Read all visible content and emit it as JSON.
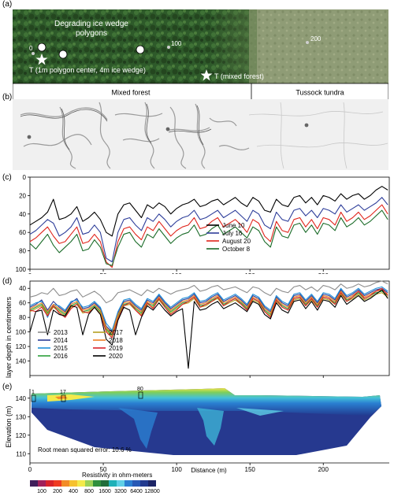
{
  "panels": {
    "a": {
      "letter": "(a)",
      "title": "Degrading ice wedge polygons",
      "marker_0": "0",
      "marker_100": "100",
      "marker_200": "200",
      "site_1": "T (1m polygon center, 4m ice wedge)",
      "site_2": "T (mixed forest)",
      "zone_left": "Mixed forest",
      "zone_right": "Tussock tundra",
      "colors": {
        "forest": "#2f5a2c",
        "tundra": "#8d9a73"
      }
    },
    "b": {
      "letter": "(b)"
    },
    "c": {
      "letter": "(c)",
      "chart_data": {
        "type": "line",
        "x": [
          0,
          4,
          8,
          12,
          16,
          20,
          24,
          28,
          32,
          36,
          40,
          44,
          48,
          52,
          56,
          60,
          64,
          68,
          72,
          76,
          80,
          84,
          88,
          92,
          96,
          100,
          104,
          108,
          112,
          116,
          120,
          124,
          128,
          132,
          136,
          140,
          144,
          148,
          152,
          156,
          160,
          164,
          168,
          172,
          176,
          180,
          184,
          188,
          192,
          196,
          200,
          204,
          208,
          212,
          216,
          220,
          224,
          228,
          232,
          236,
          240,
          244
        ],
        "ylim": [
          100,
          0
        ],
        "xlim": [
          0,
          245
        ],
        "yticks": [
          0,
          20,
          40,
          60,
          80,
          100
        ],
        "series": [
          {
            "name": "June 10",
            "color": "#000000",
            "values": [
              52,
              48,
              44,
              38,
              24,
              46,
              44,
              40,
              32,
              48,
              44,
              38,
              46,
              60,
              64,
              40,
              30,
              28,
              36,
              44,
              30,
              34,
              28,
              32,
              40,
              34,
              30,
              28,
              24,
              32,
              30,
              26,
              24,
              30,
              26,
              22,
              28,
              32,
              22,
              26,
              36,
              38,
              24,
              30,
              32,
              22,
              20,
              28,
              22,
              30,
              20,
              22,
              26,
              18,
              24,
              20,
              18,
              24,
              20,
              14,
              10,
              14
            ]
          },
          {
            "name": "July 16",
            "color": "#2e3e9a",
            "values": [
              62,
              58,
              52,
              46,
              50,
              64,
              60,
              54,
              44,
              62,
              60,
              52,
              60,
              88,
              92,
              60,
              46,
              44,
              52,
              58,
              44,
              48,
              40,
              46,
              54,
              48,
              44,
              42,
              36,
              46,
              44,
              40,
              36,
              44,
              40,
              36,
              42,
              48,
              36,
              40,
              52,
              56,
              38,
              46,
              48,
              36,
              34,
              42,
              36,
              44,
              34,
              36,
              40,
              30,
              38,
              34,
              30,
              36,
              32,
              28,
              22,
              30
            ]
          },
          {
            "name": "August 20",
            "color": "#e0241b",
            "values": [
              70,
              66,
              60,
              54,
              64,
              72,
              70,
              62,
              54,
              72,
              70,
              62,
              70,
              92,
              98,
              70,
              56,
              54,
              62,
              68,
              54,
              58,
              48,
              56,
              64,
              58,
              54,
              52,
              44,
              56,
              54,
              48,
              44,
              54,
              50,
              46,
              52,
              60,
              46,
              50,
              64,
              70,
              48,
              58,
              60,
              46,
              44,
              54,
              46,
              56,
              44,
              46,
              52,
              38,
              48,
              44,
              38,
              46,
              42,
              36,
              30,
              40
            ]
          },
          {
            "name": "October 8",
            "color": "#1a6b28",
            "values": [
              72,
              78,
              70,
              62,
              74,
              82,
              76,
              70,
              62,
              80,
              78,
              68,
              76,
              94,
              96,
              76,
              62,
              60,
              70,
              76,
              62,
              66,
              56,
              64,
              72,
              66,
              62,
              60,
              52,
              64,
              62,
              56,
              52,
              62,
              58,
              54,
              60,
              66,
              54,
              58,
              70,
              76,
              54,
              64,
              66,
              52,
              50,
              60,
              52,
              62,
              50,
              52,
              58,
              44,
              54,
              50,
              44,
              52,
              48,
              42,
              36,
              46
            ]
          }
        ]
      }
    },
    "d": {
      "letter": "(d)",
      "ylabel": "Active layer depth in centimeters",
      "chart_data": {
        "type": "line",
        "x": [
          0,
          4,
          8,
          12,
          16,
          20,
          24,
          28,
          32,
          36,
          40,
          44,
          48,
          52,
          56,
          60,
          64,
          68,
          72,
          76,
          80,
          84,
          88,
          92,
          96,
          100,
          104,
          108,
          112,
          116,
          120,
          124,
          128,
          132,
          136,
          140,
          144,
          148,
          152,
          156,
          160,
          164,
          168,
          172,
          176,
          180,
          184,
          188,
          192,
          196,
          200,
          204,
          208,
          212,
          216,
          220,
          224,
          228,
          232,
          236,
          240,
          244
        ],
        "ylim": [
          160,
          30
        ],
        "xlim": [
          0,
          245
        ],
        "yticks": [
          40,
          60,
          80,
          100,
          120,
          140
        ],
        "series": [
          {
            "name": "2013",
            "color": "#8c8c8c",
            "values": [
              52,
              50,
              46,
              48,
              40,
              50,
              48,
              44,
              42,
              52,
              48,
              44,
              50,
              60,
              56,
              46,
              44,
              42,
              46,
              50,
              42,
              46,
              40,
              44,
              48,
              44,
              42,
              40,
              36,
              44,
              42,
              38,
              36,
              42,
              40,
              38,
              42,
              46,
              38,
              40,
              46,
              50,
              40,
              44,
              46,
              38,
              36,
              42,
              38,
              44,
              36,
              38,
              42,
              34,
              40,
              38,
              34,
              38,
              36,
              32,
              30,
              34
            ]
          },
          {
            "name": "2014",
            "color": "#2b3c96",
            "values": [
              66,
              62,
              56,
              70,
              58,
              66,
              72,
              60,
              54,
              68,
              66,
              60,
              68,
              92,
              100,
              74,
              58,
              56,
              64,
              70,
              56,
              60,
              50,
              60,
              68,
              62,
              56,
              54,
              48,
              60,
              58,
              52,
              48,
              58,
              54,
              50,
              56,
              64,
              50,
              54,
              66,
              72,
              52,
              60,
              64,
              50,
              48,
              58,
              50,
              60,
              48,
              50,
              56,
              42,
              52,
              48,
              42,
              50,
              46,
              42,
              40,
              46
            ]
          },
          {
            "name": "2015",
            "color": "#1f8fd8",
            "values": [
              64,
              60,
              58,
              80,
              62,
              64,
              70,
              58,
              56,
              66,
              64,
              58,
              66,
              88,
              98,
              72,
              56,
              54,
              62,
              68,
              54,
              58,
              48,
              58,
              66,
              60,
              54,
              52,
              46,
              58,
              56,
              50,
              46,
              56,
              52,
              48,
              54,
              62,
              48,
              52,
              64,
              70,
              50,
              58,
              62,
              48,
              46,
              56,
              48,
              58,
              46,
              48,
              54,
              40,
              50,
              46,
              40,
              48,
              44,
              40,
              38,
              44
            ]
          },
          {
            "name": "2016",
            "color": "#2c9e3a",
            "values": [
              70,
              66,
              62,
              74,
              64,
              70,
              76,
              64,
              60,
              72,
              70,
              64,
              72,
              96,
              104,
              78,
              62,
              60,
              68,
              74,
              60,
              64,
              54,
              64,
              72,
              66,
              60,
              58,
              52,
              64,
              62,
              56,
              52,
              62,
              58,
              54,
              60,
              68,
              54,
              58,
              70,
              76,
              56,
              64,
              68,
              54,
              52,
              62,
              54,
              64,
              52,
              54,
              60,
              46,
              56,
              52,
              46,
              54,
              50,
              46,
              44,
              50
            ]
          },
          {
            "name": "2017",
            "color": "#b4a021",
            "values": [
              72,
              68,
              64,
              76,
              66,
              72,
              78,
              66,
              62,
              74,
              72,
              66,
              74,
              98,
              106,
              80,
              64,
              62,
              70,
              76,
              62,
              66,
              56,
              66,
              74,
              68,
              62,
              60,
              54,
              66,
              64,
              58,
              54,
              64,
              60,
              56,
              62,
              70,
              56,
              60,
              72,
              78,
              58,
              66,
              70,
              56,
              54,
              64,
              56,
              66,
              54,
              56,
              62,
              48,
              58,
              54,
              48,
              56,
              52,
              48,
              46,
              52
            ]
          },
          {
            "name": "2018",
            "color": "#ef7d22",
            "values": [
              68,
              64,
              60,
              72,
              62,
              68,
              74,
              62,
              58,
              70,
              68,
              62,
              70,
              94,
              102,
              76,
              60,
              58,
              66,
              72,
              58,
              62,
              52,
              62,
              70,
              64,
              58,
              56,
              50,
              62,
              60,
              54,
              50,
              60,
              56,
              52,
              58,
              66,
              52,
              56,
              68,
              74,
              54,
              62,
              66,
              52,
              50,
              60,
              52,
              62,
              50,
              52,
              58,
              44,
              54,
              50,
              44,
              52,
              48,
              44,
              42,
              48
            ]
          },
          {
            "name": "2019",
            "color": "#d8232a",
            "values": [
              70,
              72,
              66,
              78,
              64,
              74,
              80,
              68,
              62,
              72,
              74,
              66,
              76,
              100,
              108,
              82,
              64,
              60,
              70,
              78,
              60,
              68,
              54,
              66,
              76,
              70,
              62,
              58,
              52,
              66,
              62,
              58,
              52,
              64,
              58,
              54,
              62,
              70,
              54,
              58,
              72,
              80,
              56,
              66,
              70,
              54,
              52,
              64,
              54,
              66,
              52,
              54,
              62,
              46,
              58,
              52,
              44,
              54,
              50,
              44,
              40,
              50
            ]
          },
          {
            "name": "2020",
            "color": "#000000",
            "values": [
              100,
              72,
              70,
              104,
              70,
              76,
              78,
              64,
              66,
              104,
              76,
              66,
              76,
              110,
              118,
              84,
              66,
              70,
              104,
              80,
              64,
              70,
              60,
              70,
              78,
              72,
              68,
              150,
              58,
              70,
              68,
              62,
              58,
              68,
              64,
              60,
              66,
              72,
              58,
              62,
              76,
              82,
              60,
              70,
              74,
              58,
              56,
              68,
              58,
              70,
              56,
              58,
              66,
              50,
              62,
              56,
              50,
              58,
              54,
              48,
              42,
              54
            ]
          }
        ]
      }
    },
    "e": {
      "letter": "(e)",
      "ylabel": "Elevation (m)",
      "xlabel": "Distance (m)",
      "rms": "Root mean squared  error: 10.6 %",
      "electrode_1": "1",
      "electrode_17": "17",
      "electrode_80": "80",
      "colorbar_title": "Resistivity in ohm-meters",
      "chart_data": {
        "type": "heatmap",
        "xlim": [
          0,
          245
        ],
        "ylim": [
          105,
          145
        ],
        "xticks": [
          0,
          50,
          100,
          150,
          200
        ],
        "yticks": [
          110,
          120,
          130,
          140
        ],
        "colorbar": {
          "colors": [
            "#3f1e5a",
            "#a0205a",
            "#d8232a",
            "#ef3b22",
            "#f28c28",
            "#f6c12e",
            "#f4ea4a",
            "#9bd156",
            "#2f8f3c",
            "#1f6d3a",
            "#1fb1b8",
            "#5fd0e6",
            "#2a7fd1",
            "#2658b5",
            "#223a8f",
            "#1c2465"
          ],
          "labels": [
            "100",
            "200",
            "400",
            "800",
            "1600",
            "3200",
            "6400",
            "12800"
          ]
        }
      }
    },
    "shared_x": {
      "ticks": [
        0,
        50,
        100,
        150,
        200
      ],
      "xlim": [
        0,
        245
      ]
    }
  }
}
